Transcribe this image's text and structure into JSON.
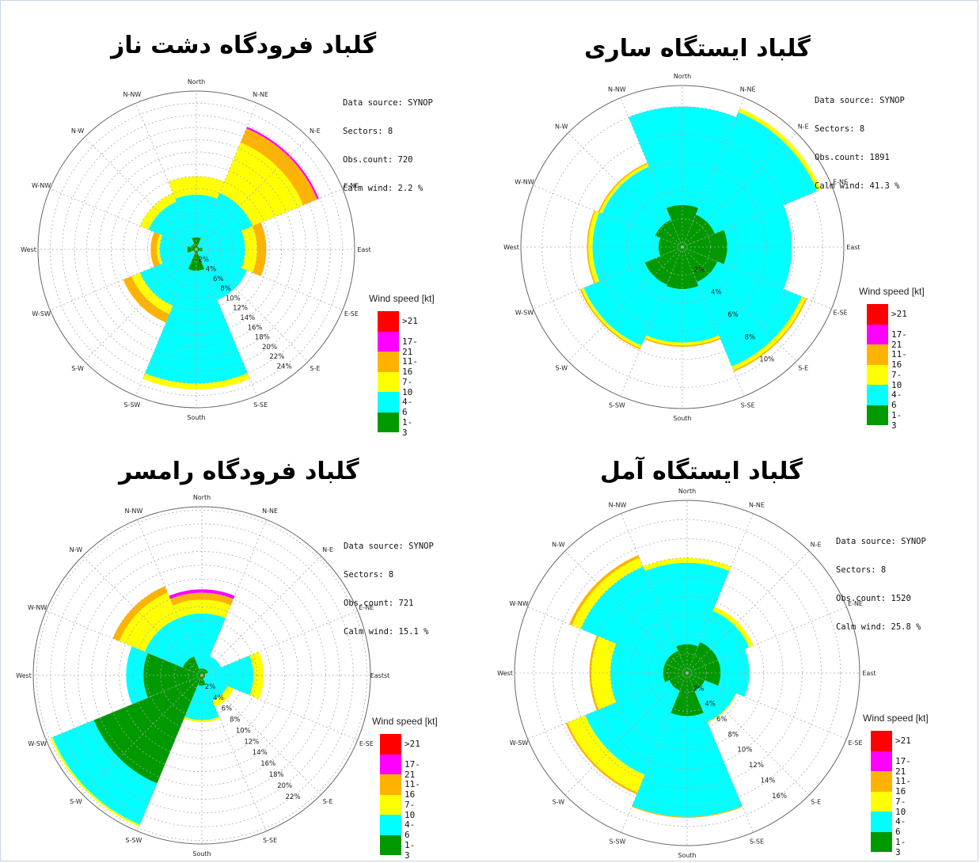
{
  "legend_levels": [
    {
      "label": ">21",
      "color": "#ff0000"
    },
    {
      "label": "17-21",
      "color": "#ff00ff"
    },
    {
      "label": "11-16",
      "color": "#ffb300"
    },
    {
      "label": "7-10",
      "color": "#ffff00"
    },
    {
      "label": "4-6",
      "color": "#00ffff"
    },
    {
      "label": "1-3",
      "color": "#009900"
    }
  ],
  "chart_data": [
    {
      "type": "windrose",
      "title": "گلباد فرودگاه دشت ناز",
      "info": [
        "Data source: SYNOP",
        "Sectors: 8",
        "Obs.count: 720",
        "Calm wind: 2.2 %"
      ],
      "legend_title": "Wind speed [kt]",
      "direction_labels": [
        "North",
        "N-NE",
        "N-E",
        "E-NE",
        "East",
        "E-SE",
        "S-E",
        "S-SE",
        "South",
        "S-SW",
        "S-W",
        "W-SW",
        "West",
        "W-NW",
        "N-W",
        "N-NW"
      ],
      "ring_labels": [
        "2%",
        "4%",
        "6%",
        "8%",
        "10%",
        "12%",
        "14%",
        "16%",
        "18%",
        "20%",
        "22%",
        "24%"
      ],
      "rmax": 26,
      "sectors": [
        {
          "dir": "North",
          "cum": [
            2.0,
            9.0,
            12.0,
            12.0,
            12.0,
            12.0
          ]
        },
        {
          "dir": "N-E",
          "cum": [
            0.5,
            10.0,
            19.0,
            21.5,
            21.8,
            21.8
          ]
        },
        {
          "dir": "East",
          "cum": [
            1.0,
            8.0,
            10.0,
            11.5,
            11.5,
            11.5
          ]
        },
        {
          "dir": "S-E",
          "cum": [
            0.5,
            9.0,
            9.0,
            9.0,
            9.0,
            9.0
          ]
        },
        {
          "dir": "South",
          "cum": [
            3.5,
            22.0,
            23.0,
            23.0,
            23.0,
            23.0
          ]
        },
        {
          "dir": "S-W",
          "cum": [
            0.5,
            10.0,
            11.5,
            13.0,
            13.0,
            13.0
          ]
        },
        {
          "dir": "West",
          "cum": [
            1.5,
            6.0,
            6.5,
            7.5,
            7.5,
            7.5
          ]
        },
        {
          "dir": "N-W",
          "cum": [
            1.0,
            8.5,
            10.0,
            10.0,
            10.0,
            10.0
          ]
        }
      ]
    },
    {
      "type": "windrose",
      "title": "گلباد ایستگاه ساری",
      "info": [
        "Data source: SYNOP",
        "Sectors: 8",
        "Obs.count: 1891",
        "Calm wind: 41.3 %"
      ],
      "legend_title": "Wind speed [kt]",
      "direction_labels": [
        "North",
        "N-NE",
        "N-E",
        "E-NE",
        "East",
        "E-SE",
        "S-E",
        "S-SE",
        "South",
        "S-SW",
        "S-W",
        "W-SW",
        "West",
        "W-NW",
        "N-W",
        "N-NW"
      ],
      "ring_labels": [
        "2%",
        "4%",
        "6%",
        "8%",
        "10%"
      ],
      "rmax": 11.5,
      "sectors": [
        {
          "dir": "North",
          "cum": [
            3.0,
            10.0,
            10.0,
            10.0,
            10.0,
            10.0
          ]
        },
        {
          "dir": "N-E",
          "cum": [
            2.5,
            10.4,
            10.7,
            10.7,
            10.7,
            10.7
          ]
        },
        {
          "dir": "East",
          "cum": [
            3.2,
            7.8,
            7.8,
            7.8,
            7.8,
            7.8
          ]
        },
        {
          "dir": "S-E",
          "cum": [
            2.7,
            9.2,
            9.5,
            9.6,
            9.6,
            9.6
          ]
        },
        {
          "dir": "South",
          "cum": [
            3.0,
            6.8,
            7.0,
            7.1,
            7.1,
            7.1
          ]
        },
        {
          "dir": "S-W",
          "cum": [
            2.9,
            7.6,
            7.8,
            7.9,
            7.9,
            7.9
          ]
        },
        {
          "dir": "West",
          "cum": [
            1.7,
            6.4,
            6.7,
            6.8,
            6.8,
            6.8
          ]
        },
        {
          "dir": "N-W",
          "cum": [
            2.1,
            6.2,
            6.4,
            6.5,
            6.5,
            6.5
          ]
        }
      ]
    },
    {
      "type": "windrose",
      "title": "گلباد فرودگاه رامسر",
      "info": [
        "Data source: SYNOP",
        "Sectors: 8",
        "Obs.count: 721",
        "Calm wind: 15.1 %"
      ],
      "legend_title": "Wind speed [kt]",
      "direction_labels": [
        "North",
        "N-NE",
        "N-E",
        "E-NE",
        "Eastst",
        "E-SE",
        "S-E",
        "S-SE",
        "South",
        "S-SW",
        "S-W",
        "W-SW",
        "West",
        "W-NW",
        "N-W",
        "N-NW"
      ],
      "ring_labels": [
        "2%",
        "4%",
        "6%",
        "8%",
        "10%",
        "12%",
        "14%",
        "16%",
        "18%",
        "20%",
        "22%"
      ],
      "rmax": 24.5,
      "sectors": [
        {
          "dir": "North",
          "cum": [
            1.0,
            9.0,
            11.0,
            12.0,
            12.5,
            12.5
          ]
        },
        {
          "dir": "N-E",
          "cum": [
            1.0,
            3.0,
            3.0,
            3.0,
            3.0,
            3.0
          ]
        },
        {
          "dir": "East",
          "cum": [
            0.5,
            7.5,
            9.0,
            9.0,
            9.0,
            9.0
          ]
        },
        {
          "dir": "S-E",
          "cum": [
            0.5,
            4.0,
            5.0,
            5.0,
            5.0,
            5.0
          ]
        },
        {
          "dir": "South",
          "cum": [
            1.5,
            6.5,
            6.8,
            6.8,
            6.8,
            6.8
          ]
        },
        {
          "dir": "S-W",
          "cum": [
            17.0,
            23.5,
            23.8,
            23.8,
            23.8,
            23.8
          ]
        },
        {
          "dir": "West",
          "cum": [
            8.5,
            11.0,
            11.0,
            11.0,
            11.0,
            11.0
          ]
        },
        {
          "dir": "N-W",
          "cum": [
            3.0,
            9.0,
            13.0,
            14.0,
            14.0,
            14.0
          ]
        }
      ]
    },
    {
      "type": "windrose",
      "title": "گلباد ایستگاه آمل",
      "info": [
        "Data source: SYNOP",
        "Sectors: 8",
        "Obs.count: 1520",
        "Calm wind: 25.8 %"
      ],
      "legend_title": "Wind speed [kt]",
      "direction_labels": [
        "North",
        "N-NE",
        "N-E",
        "E-NE",
        "East",
        "E-SE",
        "S-E",
        "S-SE",
        "South",
        "S-SW",
        "S-W",
        "W-SW",
        "West",
        "W-NW",
        "N-W",
        "N-NW"
      ],
      "ring_labels": [
        "2%",
        "4%",
        "6%",
        "8%",
        "10%",
        "12%",
        "14%",
        "16%"
      ],
      "rmax": 18,
      "sectors": [
        {
          "dir": "North",
          "cum": [
            3.0,
            11.5,
            12.0,
            12.0,
            12.0,
            12.0
          ]
        },
        {
          "dir": "N-E",
          "cum": [
            3.5,
            7.0,
            7.5,
            7.5,
            7.5,
            7.5
          ]
        },
        {
          "dir": "East",
          "cum": [
            3.5,
            6.5,
            6.5,
            6.5,
            6.5,
            6.5
          ]
        },
        {
          "dir": "S-E",
          "cum": [
            2.0,
            5.5,
            5.6,
            5.6,
            5.6,
            5.6
          ]
        },
        {
          "dir": "South",
          "cum": [
            4.5,
            15.0,
            15.0,
            15.1,
            15.1,
            15.1
          ]
        },
        {
          "dir": "S-W",
          "cum": [
            2.0,
            11.5,
            13.5,
            13.7,
            13.7,
            13.7
          ]
        },
        {
          "dir": "West",
          "cum": [
            2.5,
            8.0,
            10.0,
            10.2,
            10.2,
            10.2
          ]
        },
        {
          "dir": "N-W",
          "cum": [
            2.5,
            12.0,
            13.0,
            13.3,
            13.3,
            13.3
          ]
        }
      ]
    }
  ]
}
